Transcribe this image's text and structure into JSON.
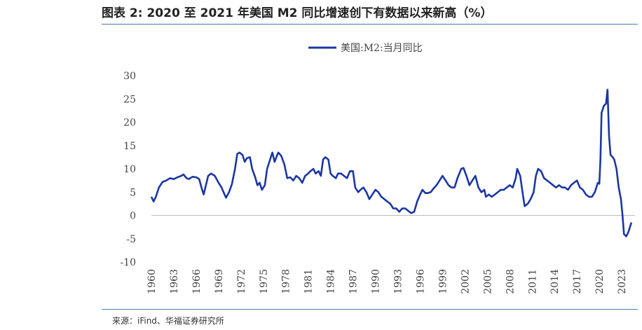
{
  "title": "图表 2:  2020 至 2021 年美国 M2 同比增速创下有数据以来新高（%）",
  "source": "来源：iFind、华福证券研究所",
  "colors": {
    "series": "#1c36a3",
    "rule": "#4a78b5"
  },
  "chart_data": {
    "type": "line",
    "title": "",
    "xlabel": "",
    "ylabel": "",
    "ylim": [
      -10,
      30
    ],
    "xlim": [
      1960,
      2024.4
    ],
    "yticks": [
      "30",
      "25",
      "20",
      "15",
      "10",
      "5",
      "0",
      "-5",
      "-10"
    ],
    "xticks": [
      "1960",
      "1963",
      "1966",
      "1969",
      "1972",
      "1975",
      "1978",
      "1981",
      "1984",
      "1987",
      "1990",
      "1993",
      "1996",
      "1999",
      "2002",
      "2005",
      "2008",
      "2011",
      "2014",
      "2017",
      "2020",
      "2023"
    ],
    "legend_position": "top-center",
    "series": [
      {
        "name": "美国:M2:当月同比",
        "points": [
          [
            1960.0,
            4.0
          ],
          [
            1960.3,
            3.0
          ],
          [
            1960.6,
            4.0
          ],
          [
            1961.0,
            6.0
          ],
          [
            1961.5,
            7.2
          ],
          [
            1962.0,
            7.5
          ],
          [
            1962.5,
            8.0
          ],
          [
            1963.0,
            7.8
          ],
          [
            1963.5,
            8.2
          ],
          [
            1964.0,
            8.5
          ],
          [
            1964.3,
            8.8
          ],
          [
            1964.7,
            8.0
          ],
          [
            1965.0,
            7.8
          ],
          [
            1965.5,
            8.3
          ],
          [
            1966.0,
            8.2
          ],
          [
            1966.4,
            7.8
          ],
          [
            1966.8,
            5.5
          ],
          [
            1967.0,
            4.5
          ],
          [
            1967.3,
            6.5
          ],
          [
            1967.6,
            8.5
          ],
          [
            1968.0,
            9.0
          ],
          [
            1968.5,
            8.5
          ],
          [
            1969.0,
            7.0
          ],
          [
            1969.4,
            6.0
          ],
          [
            1969.8,
            4.5
          ],
          [
            1970.0,
            3.8
          ],
          [
            1970.4,
            5.0
          ],
          [
            1970.8,
            6.8
          ],
          [
            1971.2,
            10.0
          ],
          [
            1971.5,
            13.2
          ],
          [
            1971.8,
            13.5
          ],
          [
            1972.2,
            13.0
          ],
          [
            1972.5,
            11.5
          ],
          [
            1972.8,
            12.3
          ],
          [
            1973.2,
            12.5
          ],
          [
            1973.5,
            10.0
          ],
          [
            1973.9,
            8.2
          ],
          [
            1974.2,
            6.5
          ],
          [
            1974.5,
            7.0
          ],
          [
            1974.8,
            5.5
          ],
          [
            1975.2,
            6.5
          ],
          [
            1975.5,
            10.0
          ],
          [
            1975.8,
            11.5
          ],
          [
            1976.2,
            13.5
          ],
          [
            1976.5,
            11.5
          ],
          [
            1976.8,
            12.8
          ],
          [
            1977.0,
            13.5
          ],
          [
            1977.4,
            12.8
          ],
          [
            1977.8,
            11.0
          ],
          [
            1978.2,
            8.0
          ],
          [
            1978.6,
            8.2
          ],
          [
            1979.0,
            7.5
          ],
          [
            1979.4,
            8.5
          ],
          [
            1979.8,
            8.0
          ],
          [
            1980.2,
            7.0
          ],
          [
            1980.6,
            8.5
          ],
          [
            1981.0,
            9.0
          ],
          [
            1981.3,
            9.5
          ],
          [
            1981.7,
            10.0
          ],
          [
            1982.0,
            9.0
          ],
          [
            1982.4,
            9.5
          ],
          [
            1982.7,
            8.5
          ],
          [
            1983.0,
            12.0
          ],
          [
            1983.3,
            12.5
          ],
          [
            1983.7,
            12.0
          ],
          [
            1984.0,
            9.0
          ],
          [
            1984.3,
            8.5
          ],
          [
            1984.7,
            8.0
          ],
          [
            1985.0,
            9.0
          ],
          [
            1985.4,
            9.0
          ],
          [
            1985.8,
            8.5
          ],
          [
            1986.2,
            8.0
          ],
          [
            1986.6,
            9.5
          ],
          [
            1987.0,
            9.5
          ],
          [
            1987.3,
            6.0
          ],
          [
            1987.7,
            5.0
          ],
          [
            1988.0,
            5.5
          ],
          [
            1988.4,
            6.0
          ],
          [
            1988.8,
            5.0
          ],
          [
            1989.2,
            3.5
          ],
          [
            1989.6,
            4.5
          ],
          [
            1990.0,
            5.5
          ],
          [
            1990.4,
            5.0
          ],
          [
            1990.8,
            4.0
          ],
          [
            1991.2,
            3.5
          ],
          [
            1991.6,
            3.0
          ],
          [
            1992.0,
            2.5
          ],
          [
            1992.4,
            1.5
          ],
          [
            1992.8,
            1.5
          ],
          [
            1993.2,
            0.8
          ],
          [
            1993.6,
            1.5
          ],
          [
            1994.0,
            1.5
          ],
          [
            1994.4,
            1.0
          ],
          [
            1994.8,
            0.5
          ],
          [
            1995.2,
            0.8
          ],
          [
            1995.6,
            3.0
          ],
          [
            1996.0,
            4.5
          ],
          [
            1996.3,
            5.5
          ],
          [
            1996.7,
            4.8
          ],
          [
            1997.0,
            4.8
          ],
          [
            1997.4,
            5.0
          ],
          [
            1997.8,
            5.8
          ],
          [
            1998.2,
            6.5
          ],
          [
            1998.6,
            7.5
          ],
          [
            1999.0,
            8.5
          ],
          [
            1999.4,
            7.5
          ],
          [
            1999.8,
            6.5
          ],
          [
            2000.2,
            6.0
          ],
          [
            2000.6,
            6.0
          ],
          [
            2001.0,
            8.0
          ],
          [
            2001.5,
            10.0
          ],
          [
            2001.8,
            10.2
          ],
          [
            2002.2,
            8.5
          ],
          [
            2002.6,
            6.5
          ],
          [
            2003.0,
            7.5
          ],
          [
            2003.4,
            8.5
          ],
          [
            2003.8,
            6.0
          ],
          [
            2004.2,
            5.0
          ],
          [
            2004.6,
            5.5
          ],
          [
            2004.8,
            4.0
          ],
          [
            2005.2,
            4.5
          ],
          [
            2005.6,
            4.0
          ],
          [
            2006.0,
            4.5
          ],
          [
            2006.4,
            5.0
          ],
          [
            2006.8,
            5.5
          ],
          [
            2007.2,
            5.5
          ],
          [
            2007.6,
            6.0
          ],
          [
            2008.0,
            6.5
          ],
          [
            2008.4,
            6.0
          ],
          [
            2008.8,
            8.0
          ],
          [
            2009.0,
            10.0
          ],
          [
            2009.4,
            8.5
          ],
          [
            2009.8,
            4.0
          ],
          [
            2010.0,
            2.0
          ],
          [
            2010.4,
            2.5
          ],
          [
            2010.8,
            3.5
          ],
          [
            2011.2,
            5.0
          ],
          [
            2011.5,
            8.5
          ],
          [
            2011.8,
            10.0
          ],
          [
            2012.2,
            9.5
          ],
          [
            2012.6,
            8.0
          ],
          [
            2013.0,
            7.5
          ],
          [
            2013.4,
            7.0
          ],
          [
            2013.8,
            6.5
          ],
          [
            2014.2,
            6.0
          ],
          [
            2014.6,
            6.5
          ],
          [
            2015.0,
            6.0
          ],
          [
            2015.4,
            6.0
          ],
          [
            2015.8,
            5.5
          ],
          [
            2016.2,
            6.5
          ],
          [
            2016.6,
            7.0
          ],
          [
            2017.0,
            7.5
          ],
          [
            2017.4,
            6.0
          ],
          [
            2017.8,
            5.5
          ],
          [
            2018.2,
            4.5
          ],
          [
            2018.6,
            4.0
          ],
          [
            2019.0,
            4.0
          ],
          [
            2019.4,
            5.0
          ],
          [
            2019.8,
            7.0
          ],
          [
            2020.0,
            6.8
          ],
          [
            2020.15,
            12.0
          ],
          [
            2020.3,
            22.0
          ],
          [
            2020.6,
            23.5
          ],
          [
            2020.9,
            24.0
          ],
          [
            2021.1,
            27.0
          ],
          [
            2021.3,
            17.0
          ],
          [
            2021.5,
            13.0
          ],
          [
            2021.8,
            12.5
          ],
          [
            2022.0,
            12.0
          ],
          [
            2022.3,
            10.0
          ],
          [
            2022.6,
            6.0
          ],
          [
            2022.9,
            3.5
          ],
          [
            2023.1,
            0.0
          ],
          [
            2023.3,
            -4.0
          ],
          [
            2023.6,
            -4.5
          ],
          [
            2023.9,
            -3.5
          ],
          [
            2024.3,
            -1.5
          ]
        ]
      }
    ]
  }
}
